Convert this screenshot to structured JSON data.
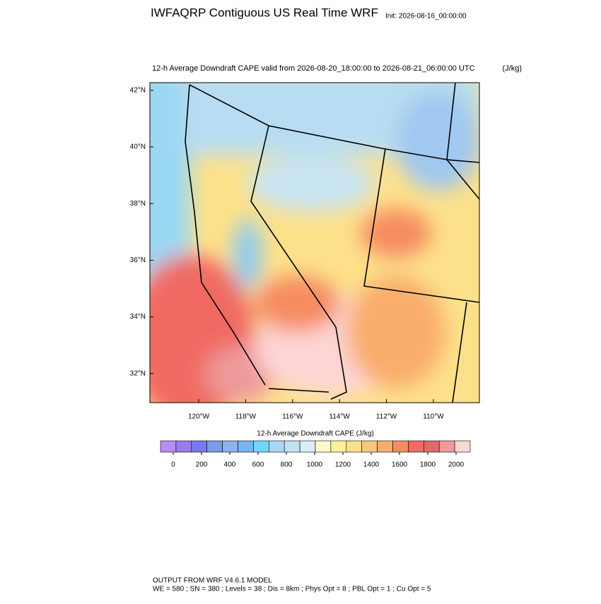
{
  "header": {
    "title": "IWFAQRP Contiguous US Real Time WRF",
    "init": "Init: 2026-08-16_00:00:00"
  },
  "map": {
    "subtitle": "12-h Average Downdraft CAPE valid from 2026-08-20_18:00:00 to 2026-08-21_06:00:00 UTC",
    "units": "(J/kg)",
    "latlim": [
      30.97,
      42.27
    ],
    "lat_ticks": [
      {
        "value": 42,
        "label": "42°N"
      },
      {
        "value": 40,
        "label": "40°N"
      },
      {
        "value": 38,
        "label": "38°N"
      },
      {
        "value": 36,
        "label": "36°N"
      },
      {
        "value": 34,
        "label": "34°N"
      },
      {
        "value": 32,
        "label": "32°N"
      }
    ],
    "lonlim": [
      -122.08,
      -108.04
    ],
    "lon_ticks": [
      {
        "value": -120,
        "label": "120°W"
      },
      {
        "value": -118,
        "label": "118°W"
      },
      {
        "value": -116,
        "label": "116°W"
      },
      {
        "value": -114,
        "label": "114°W"
      },
      {
        "value": -112,
        "label": "112°W"
      },
      {
        "value": -110,
        "label": "110°W"
      }
    ]
  },
  "colorbar": {
    "title": "12-h Average Downdraft CAPE  (J/kg)",
    "lim": [
      -90,
      2100
    ],
    "colors": [
      "#b88cf0",
      "#9a7af0",
      "#7a78f0",
      "#7e9ae8",
      "#8cb2f0",
      "#78b4f4",
      "#70d6fa",
      "#a8d8f4",
      "#c2e2f4",
      "#dcecf4",
      "#fffac8",
      "#fff0a0",
      "#fde18a",
      "#fbc878",
      "#f9ad6c",
      "#f68c62",
      "#f06a64",
      "#e06a6a",
      "#ee9a9a",
      "#fdd6d6"
    ],
    "ticks": [
      0,
      200,
      400,
      600,
      800,
      1000,
      1200,
      1400,
      1600,
      1800,
      2000
    ]
  },
  "footer": {
    "line1": "OUTPUT FROM WRF V4.6.1 MODEL",
    "line2": "WE = 580 ; SN = 380 ; Levels = 38 ; Dis = 8km ; Phys Opt = 8 ; PBL Opt = 1 ; Cu Opt = 5"
  }
}
